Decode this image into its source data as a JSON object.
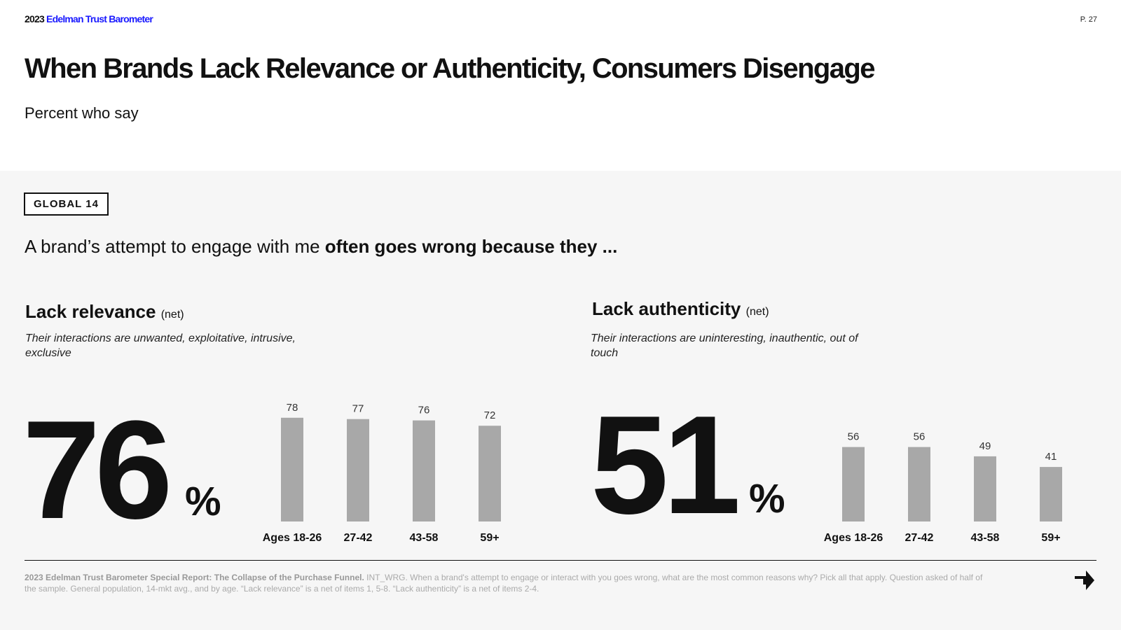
{
  "header": {
    "year": "2023",
    "brand": "Edelman Trust Barometer",
    "page": "P. 27"
  },
  "title": "When Brands Lack Relevance or Authenticity, Consumers Disengage",
  "subtitle": "Percent who say",
  "badge": "GLOBAL 14",
  "lead": {
    "normal": "A brand’s attempt to engage with me ",
    "bold": "often goes wrong because they ..."
  },
  "sections": [
    {
      "title": "Lack relevance",
      "net": "(net)",
      "description": "Their interactions are unwanted, exploitative, intrusive, exclusive",
      "big_value": "76",
      "pct_sign": "%"
    },
    {
      "title": "Lack authenticity",
      "net": "(net)",
      "description": "Their interactions are uninteresting, inauthentic, out of touch",
      "big_value": "51",
      "pct_sign": "%"
    }
  ],
  "chart_data": [
    {
      "type": "bar",
      "title": "Lack relevance (net)",
      "categories": [
        "Ages 18-26",
        "27-42",
        "43-58",
        "59+"
      ],
      "values": [
        78,
        77,
        76,
        72
      ],
      "ylim": [
        0,
        100
      ],
      "bar_color": "#a8a8a8"
    },
    {
      "type": "bar",
      "title": "Lack authenticity (net)",
      "categories": [
        "Ages 18-26",
        "27-42",
        "43-58",
        "59+"
      ],
      "values": [
        56,
        56,
        49,
        41
      ],
      "ylim": [
        0,
        100
      ],
      "bar_color": "#a8a8a8"
    }
  ],
  "footnote": {
    "source": "2023 Edelman Trust Barometer Special Report: The Collapse of the Purchase Funnel.",
    "text": " INT_WRG. When a brand's attempt to engage or interact with you goes wrong, what are the most common reasons why? Pick all that apply. Question asked of half of the sample. General population, 14-mkt avg., and by age. “Lack relevance” is a net of items 1, 5-8. “Lack authenticity” is a net of items 2-4."
  },
  "icons": {
    "next": "next-arrow-icon"
  }
}
